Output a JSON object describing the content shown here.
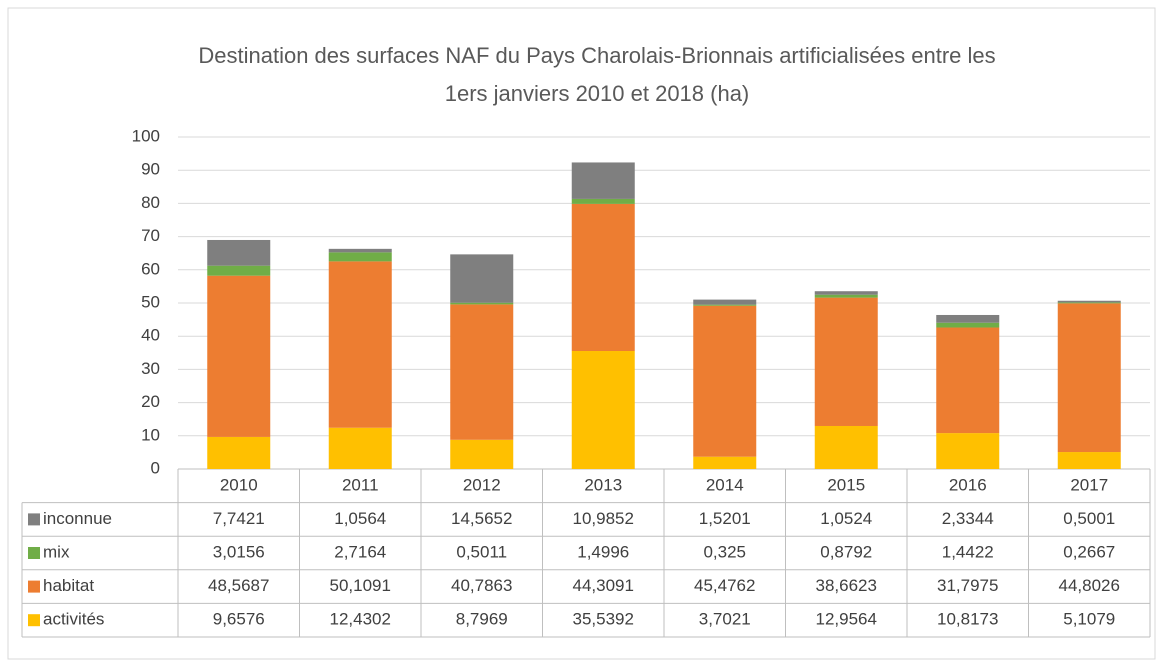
{
  "chart_data": {
    "type": "stacked_bar",
    "title": "Destination des surfaces NAF du Pays Charolais-Brionnais artificialisées entre les 1ers janviers 2010 et 2018 (ha)",
    "categories": [
      "2010",
      "2011",
      "2012",
      "2013",
      "2014",
      "2015",
      "2016",
      "2017"
    ],
    "series": [
      {
        "name": "activités",
        "color": "#ffc000",
        "values": [
          9.6576,
          12.4302,
          8.7969,
          35.5392,
          3.7021,
          12.9564,
          10.8173,
          5.1079
        ],
        "value_labels": [
          "9,6576",
          "12,4302",
          "8,7969",
          "35,5392",
          "3,7021",
          "12,9564",
          "10,8173",
          "5,1079"
        ]
      },
      {
        "name": "habitat",
        "color": "#ed7d31",
        "values": [
          48.5687,
          50.1091,
          40.7863,
          44.3091,
          45.4762,
          38.6623,
          31.7975,
          44.8026
        ],
        "value_labels": [
          "48,5687",
          "50,1091",
          "40,7863",
          "44,3091",
          "45,4762",
          "38,6623",
          "31,7975",
          "44,8026"
        ]
      },
      {
        "name": "mix",
        "color": "#70ad47",
        "values": [
          3.0156,
          2.7164,
          0.5011,
          1.4996,
          0.325,
          0.8792,
          1.4422,
          0.2667
        ],
        "value_labels": [
          "3,0156",
          "2,7164",
          "0,5011",
          "1,4996",
          "0,325",
          "0,8792",
          "1,4422",
          "0,2667"
        ]
      },
      {
        "name": "inconnue",
        "color": "#7f7f7f",
        "values": [
          7.7421,
          1.0564,
          14.5652,
          10.9852,
          1.5201,
          1.0524,
          2.3344,
          0.5001
        ],
        "value_labels": [
          "7,7421",
          "1,0564",
          "14,5652",
          "10,9852",
          "1,5201",
          "1,0524",
          "2,3344",
          "0,5001"
        ]
      }
    ],
    "ylim": [
      0,
      100
    ],
    "yticks": [
      0,
      10,
      20,
      30,
      40,
      50,
      60,
      70,
      80,
      90,
      100
    ],
    "grid": true,
    "data_table": true
  }
}
